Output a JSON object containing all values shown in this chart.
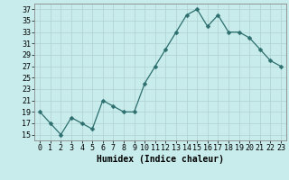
{
  "x": [
    0,
    1,
    2,
    3,
    4,
    5,
    6,
    7,
    8,
    9,
    10,
    11,
    12,
    13,
    14,
    15,
    16,
    17,
    18,
    19,
    20,
    21,
    22,
    23
  ],
  "y": [
    19,
    17,
    15,
    18,
    17,
    16,
    21,
    20,
    19,
    19,
    24,
    27,
    30,
    33,
    36,
    37,
    34,
    36,
    33,
    33,
    32,
    30,
    28,
    27
  ],
  "line_color": "#2d6e6e",
  "marker": "D",
  "marker_size": 2.5,
  "bg_color": "#c8ecec",
  "grid_color": "#b0d0d0",
  "xlabel": "Humidex (Indice chaleur)",
  "xlim": [
    -0.5,
    23.5
  ],
  "ylim": [
    14,
    38
  ],
  "yticks": [
    15,
    17,
    19,
    21,
    23,
    25,
    27,
    29,
    31,
    33,
    35,
    37
  ],
  "xticks": [
    0,
    1,
    2,
    3,
    4,
    5,
    6,
    7,
    8,
    9,
    10,
    11,
    12,
    13,
    14,
    15,
    16,
    17,
    18,
    19,
    20,
    21,
    22,
    23
  ],
  "xlabel_fontsize": 7,
  "tick_fontsize": 6
}
